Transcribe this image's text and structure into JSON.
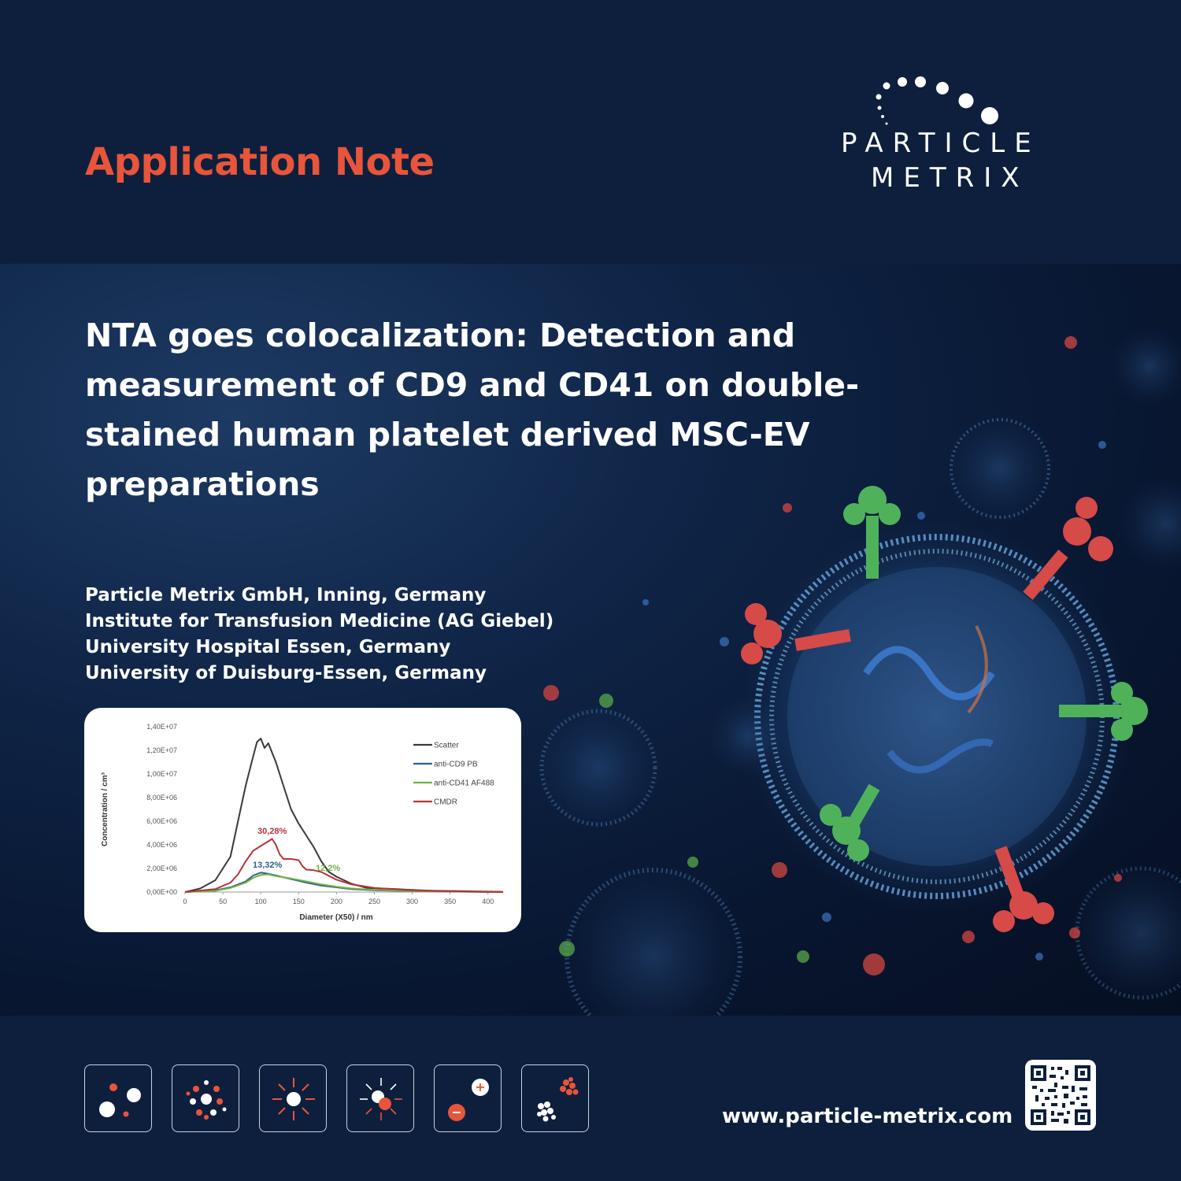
{
  "header": {
    "label": "Application Note",
    "logo": {
      "line1": "PARTICLE",
      "line2": "METRIX"
    }
  },
  "hero": {
    "title": "NTA goes colocalization: Detection and measurement of CD9 and CD41 on double-stained human platelet derived MSC-EV preparations",
    "affiliations": [
      "Particle Metrix GmbH, Inning, Germany",
      "Institute for Transfusion Medicine (AG Giebel)",
      "University Hospital Essen, Germany",
      "University of Duisburg-Essen, Germany"
    ]
  },
  "chart_data": {
    "type": "line",
    "xlabel": "Diameter (X50) / nm",
    "ylabel": "Concentration / cm³",
    "xlim": [
      0,
      420
    ],
    "ylim": [
      0,
      14000000
    ],
    "x_ticks": [
      "0",
      "50",
      "100",
      "150",
      "200",
      "250",
      "300",
      "350",
      "400"
    ],
    "y_ticks": [
      "0,00E+00",
      "2,00E+06",
      "4,00E+06",
      "6,00E+06",
      "8,00E+06",
      "1,00E+07",
      "1,20E+07",
      "1,40E+07"
    ],
    "legend_position": "top-right",
    "series": [
      {
        "name": "Scatter",
        "color": "#3a3a3a",
        "x": [
          0,
          20,
          40,
          60,
          70,
          80,
          90,
          95,
          100,
          105,
          110,
          120,
          130,
          140,
          150,
          160,
          170,
          180,
          190,
          200,
          220,
          240,
          260,
          280,
          300,
          320,
          340,
          360,
          380,
          400,
          420
        ],
        "y": [
          0,
          300000,
          1000000,
          3000000,
          6000000,
          9000000,
          11500000,
          12700000,
          13000000,
          12200000,
          12600000,
          11000000,
          9000000,
          7000000,
          5800000,
          4800000,
          3800000,
          2600000,
          1700000,
          1300000,
          700000,
          350000,
          300000,
          250000,
          180000,
          130000,
          100000,
          80000,
          60000,
          40000,
          20000
        ]
      },
      {
        "name": "anti-CD9 PB",
        "color": "#2e5f8c",
        "x": [
          0,
          40,
          60,
          80,
          90,
          100,
          110,
          120,
          140,
          160,
          180,
          200,
          220,
          250,
          300,
          350,
          420
        ],
        "y": [
          0,
          150000,
          400000,
          900000,
          1400000,
          1650000,
          1550000,
          1400000,
          1100000,
          800000,
          550000,
          400000,
          250000,
          150000,
          80000,
          40000,
          0
        ]
      },
      {
        "name": "anti-CD41 AF488",
        "color": "#6db33f",
        "x": [
          0,
          40,
          60,
          80,
          90,
          100,
          110,
          120,
          140,
          160,
          180,
          200,
          220,
          250,
          300,
          350,
          420
        ],
        "y": [
          0,
          100000,
          350000,
          800000,
          1200000,
          1450000,
          1500000,
          1350000,
          1150000,
          900000,
          650000,
          450000,
          300000,
          180000,
          90000,
          40000,
          0
        ]
      },
      {
        "name": "CMDR",
        "color": "#b8333a",
        "x": [
          0,
          40,
          60,
          70,
          80,
          90,
          100,
          110,
          115,
          120,
          125,
          130,
          140,
          150,
          155,
          160,
          170,
          180,
          200,
          220,
          250,
          300,
          350,
          420
        ],
        "y": [
          0,
          250000,
          800000,
          1500000,
          2600000,
          3500000,
          3900000,
          4300000,
          4500000,
          4000000,
          3200000,
          2800000,
          2800000,
          2700000,
          2200000,
          1900000,
          1850000,
          1700000,
          1050000,
          650000,
          350000,
          150000,
          60000,
          0
        ]
      }
    ],
    "annotations": [
      {
        "text": "30,28%",
        "color": "#b8333a"
      },
      {
        "text": "13,32%",
        "color": "#2e5f8c"
      },
      {
        "text": "12,2%",
        "color": "#6db33f"
      }
    ]
  },
  "footer": {
    "website": "www.particle-metrix.com",
    "icons": [
      "particles-icon",
      "scatter-cluster-icon",
      "light-scatter-icon",
      "fluorescence-icon",
      "zeta-charge-icon",
      "aggregate-icon"
    ]
  },
  "colors": {
    "accent": "#e8553a",
    "background": "#0e1f3d"
  }
}
